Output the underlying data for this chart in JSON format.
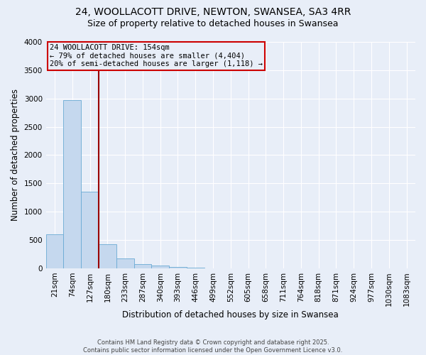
{
  "title": "24, WOOLLACOTT DRIVE, NEWTON, SWANSEA, SA3 4RR",
  "subtitle": "Size of property relative to detached houses in Swansea",
  "xlabel": "Distribution of detached houses by size in Swansea",
  "ylabel": "Number of detached properties",
  "bar_color": "#c5d8ee",
  "bar_edge_color": "#6aaad4",
  "background_color": "#e8eef8",
  "grid_color": "#ffffff",
  "categories": [
    "21sqm",
    "74sqm",
    "127sqm",
    "180sqm",
    "233sqm",
    "287sqm",
    "340sqm",
    "393sqm",
    "446sqm",
    "499sqm",
    "552sqm",
    "605sqm",
    "658sqm",
    "711sqm",
    "764sqm",
    "818sqm",
    "871sqm",
    "924sqm",
    "977sqm",
    "1030sqm",
    "1083sqm"
  ],
  "values": [
    600,
    2970,
    1350,
    420,
    170,
    75,
    55,
    20,
    10,
    5,
    4,
    3,
    2,
    2,
    2,
    2,
    1,
    1,
    1,
    1,
    1
  ],
  "vline_color": "#990000",
  "annotation_text": "24 WOOLLACOTT DRIVE: 154sqm\n← 79% of detached houses are smaller (4,404)\n20% of semi-detached houses are larger (1,118) →",
  "annotation_box_color": "#cc0000",
  "annotation_text_color": "#000000",
  "ylim": [
    0,
    4000
  ],
  "yticks": [
    0,
    500,
    1000,
    1500,
    2000,
    2500,
    3000,
    3500,
    4000
  ],
  "footnote": "Contains HM Land Registry data © Crown copyright and database right 2025.\nContains public sector information licensed under the Open Government Licence v3.0.",
  "title_fontsize": 10,
  "subtitle_fontsize": 9,
  "label_fontsize": 8.5,
  "tick_fontsize": 7.5,
  "annot_fontsize": 7.5,
  "footnote_fontsize": 6
}
